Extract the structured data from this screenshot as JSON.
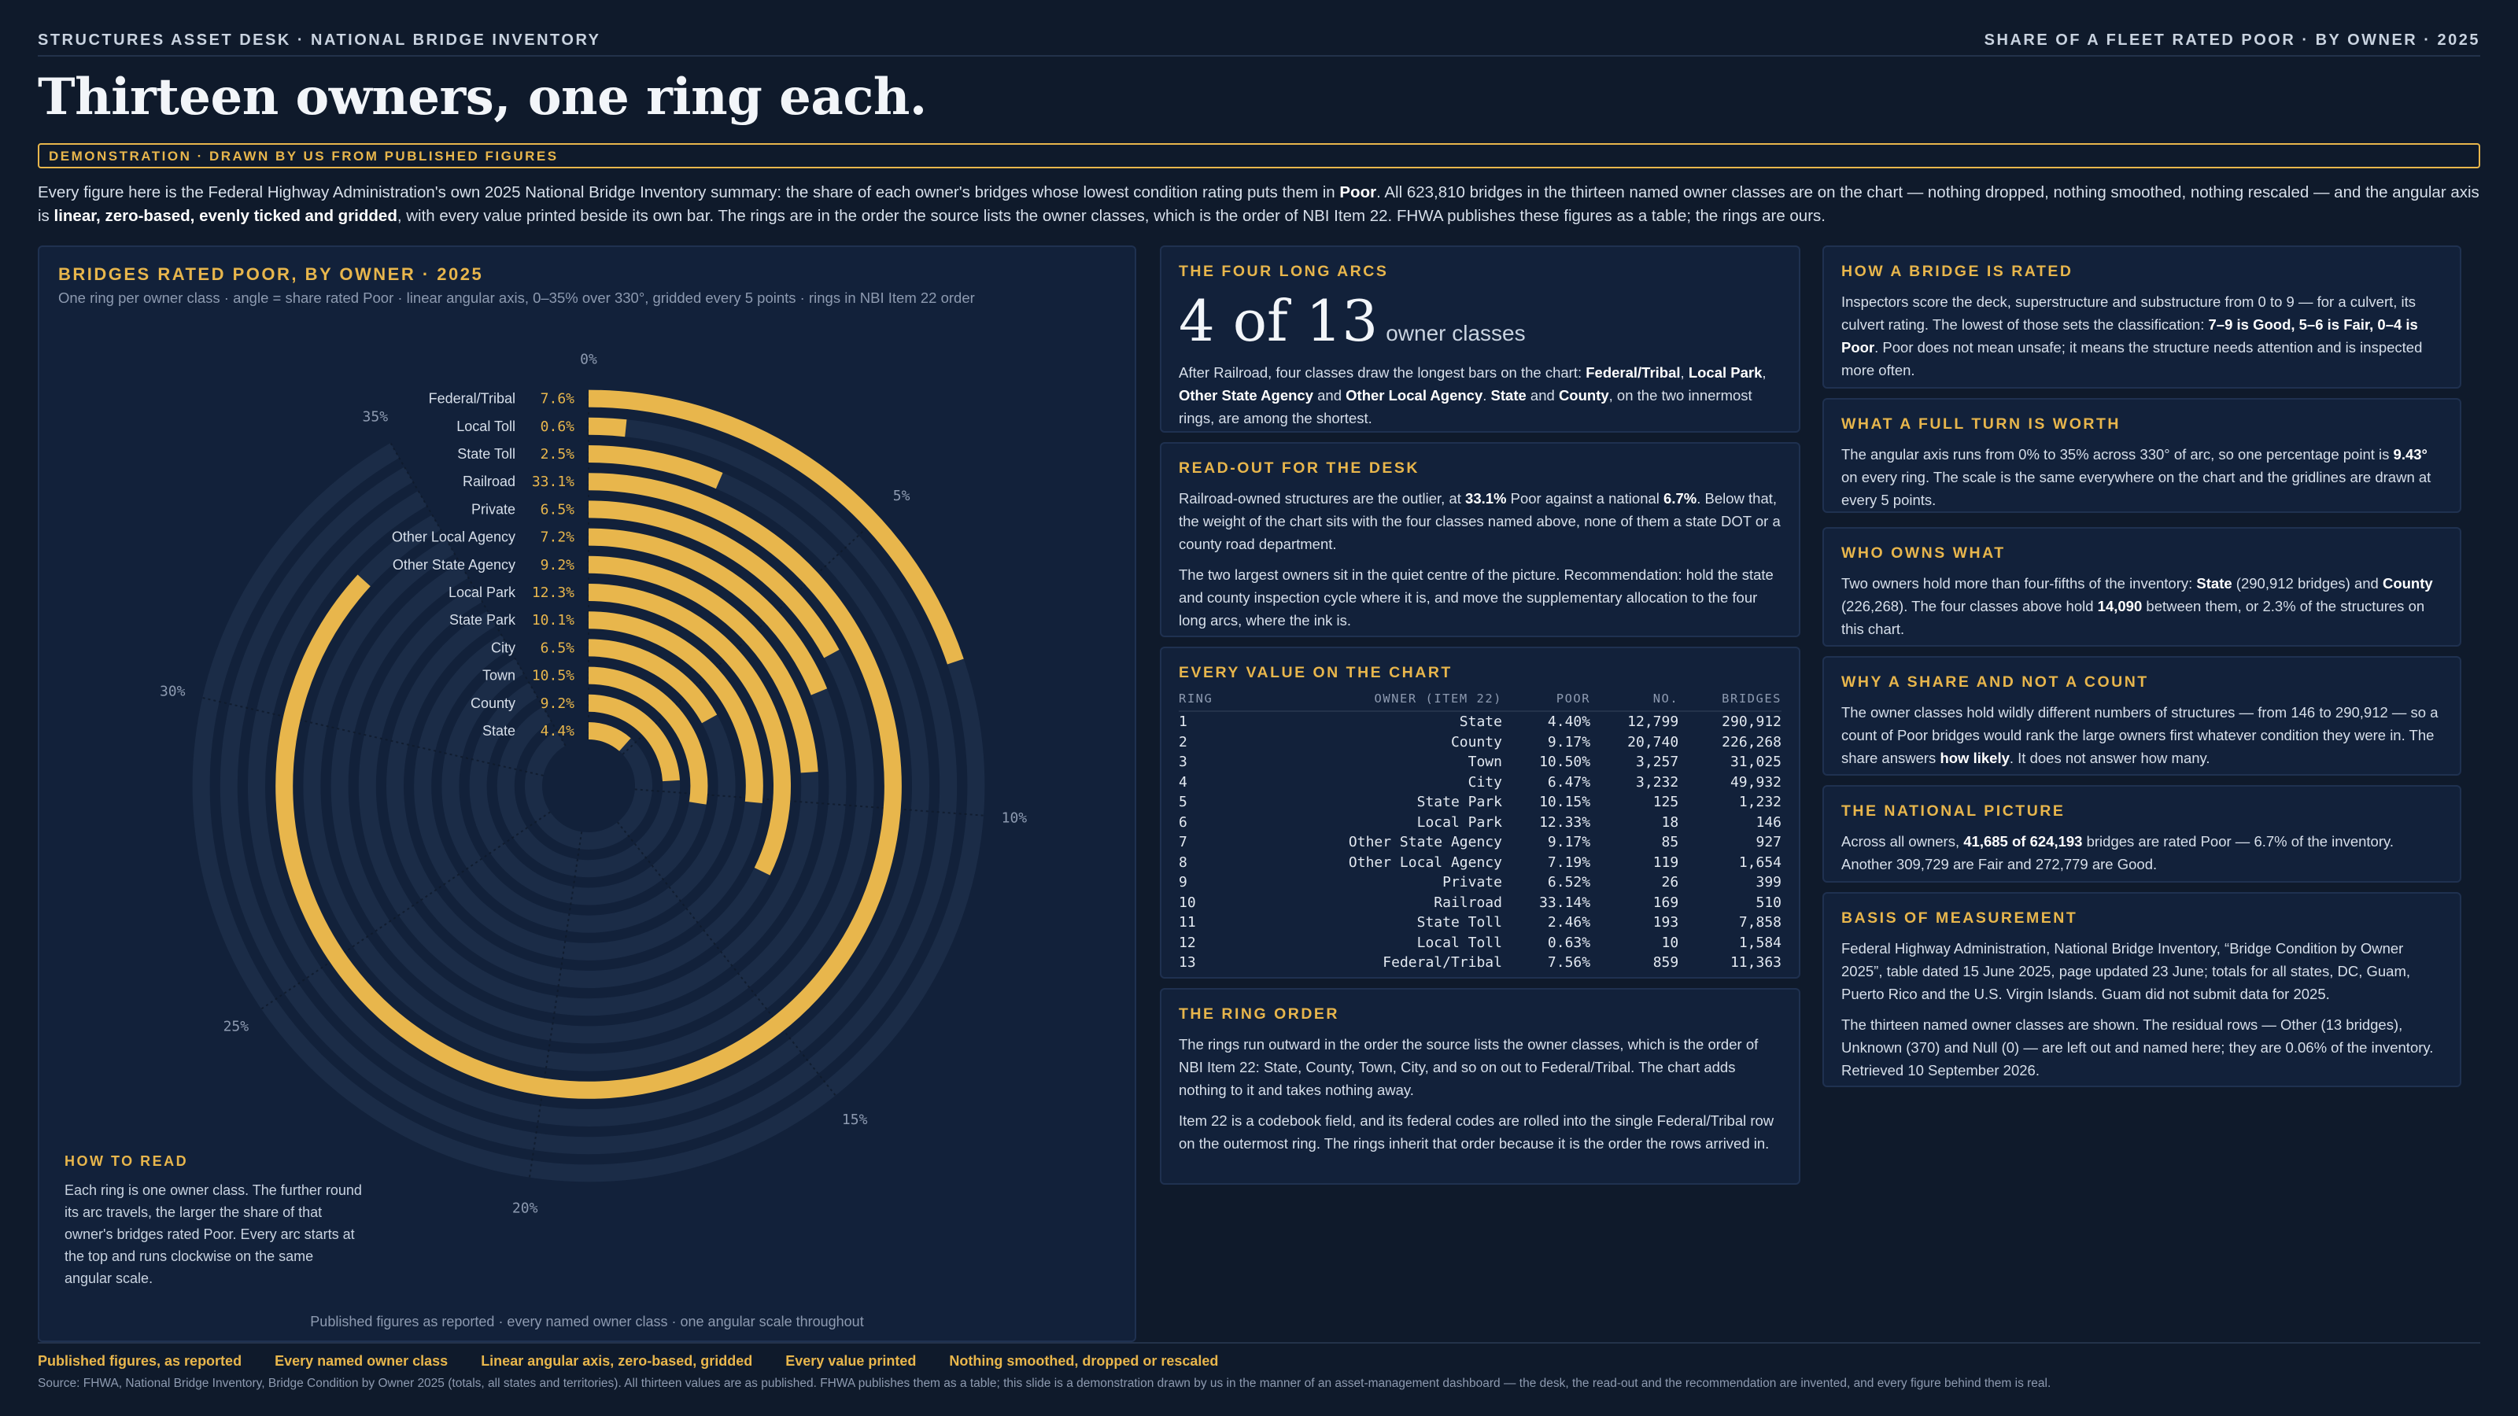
{
  "topbar": {
    "left": "STRUCTURES ASSET DESK · NATIONAL BRIDGE INVENTORY",
    "right": "SHARE OF A FLEET RATED POOR · BY OWNER · 2025"
  },
  "headline": "Thirteen owners, one ring each.",
  "banner": "DEMONSTRATION · DRAWN BY US FROM PUBLISHED FIGURES",
  "intro": {
    "t1": "Every figure here is the Federal Highway Administration's own 2025 National Bridge Inventory summary: the share of each owner's bridges whose lowest condition rating puts them in ",
    "b1": "Poor",
    "t2": ". All 623,810 bridges in the thirteen named owner classes are on the chart — nothing dropped, nothing smoothed, nothing rescaled — and the angular axis is ",
    "b2": "linear, zero-based, evenly ticked and gridded",
    "t3": ", with every value printed beside its own bar. The rings are in the order the source lists the owner classes, which is the order of NBI Item 22. FHWA publishes these figures as a table; the rings are ours."
  },
  "chart_panel": {
    "title": "BRIDGES RATED POOR, BY OWNER · 2025",
    "subtitle": "One ring per owner class · angle = share rated Poor · linear angular axis, 0–35% over 330°, gridded every 5 points · rings in NBI Item 22 order",
    "footer": "Published figures as reported · every named owner class · one angular scale throughout"
  },
  "howto": {
    "title": "HOW TO READ",
    "text": "Each ring is one owner class. The further round its arc travels, the larger the share of that owner's bridges rated Poor. Every arc starts at the top and runs clockwise on the same angular scale."
  },
  "chart_data": {
    "type": "radial-bar",
    "title": "BRIDGES RATED POOR, BY OWNER · 2025",
    "angular_axis": {
      "min": 0,
      "max": 35,
      "unit": "%",
      "ticks": [
        "0%",
        "5%",
        "10%",
        "15%",
        "20%",
        "25%",
        "30%",
        "35%"
      ],
      "tick_values": [
        0,
        5,
        10,
        15,
        20,
        25,
        30,
        35
      ],
      "grid": true,
      "span_degrees": 330
    },
    "categories": [
      "State",
      "County",
      "Town",
      "City",
      "State Park",
      "Local Park",
      "Other State Agency",
      "Other Local Agency",
      "Private",
      "Railroad",
      "State Toll",
      "Local Toll",
      "Federal/Tribal"
    ],
    "values": [
      4.4,
      9.17,
      10.5,
      6.47,
      10.15,
      12.33,
      9.17,
      7.19,
      6.52,
      33.14,
      2.46,
      0.63,
      7.56
    ],
    "value_labels": [
      "4.4%",
      "9.2%",
      "10.5%",
      "6.5%",
      "10.1%",
      "12.3%",
      "9.2%",
      "7.2%",
      "6.5%",
      "33.1%",
      "2.5%",
      "0.6%",
      "7.6%"
    ],
    "colors": {
      "bar": "#e8b64c",
      "track": "#1b2c47",
      "label": "#e8b64c"
    }
  },
  "cards": {
    "long_arcs": {
      "title": "THE FOUR LONG ARCS",
      "big": "4 of 13",
      "unit": "owner classes",
      "t1": "After Railroad, four classes draw the longest bars on the chart: ",
      "b1": "Federal/Tribal",
      "t2": ", ",
      "b2": "Local Park",
      "t3": ", ",
      "b3": "Other State Agency",
      "t4": " and ",
      "b4": "Other Local Agency",
      "t5": ". ",
      "b5": "State",
      "t6": " and ",
      "b6": "County",
      "t7": ", on the two innermost rings, are among the shortest."
    },
    "readout": {
      "title": "READ-OUT FOR THE DESK",
      "p1a": "Railroad-owned structures are the outlier, at ",
      "p1b": "33.1%",
      "p1c": " Poor against a national ",
      "p1d": "6.7%",
      "p1e": ". Below that, the weight of the chart sits with the four classes named above, none of them a state DOT or a county road department.",
      "p2": "The two largest owners sit in the quiet centre of the picture. Recommendation: hold the state and county inspection cycle where it is, and move the supplementary allocation to the four long arcs, where the ink is."
    },
    "table": {
      "title": "EVERY VALUE ON THE CHART",
      "headers": [
        "RING",
        "OWNER (ITEM 22)",
        "POOR",
        "NO.",
        "BRIDGES"
      ],
      "rows": [
        [
          "1",
          "State",
          "4.40%",
          "12,799",
          "290,912"
        ],
        [
          "2",
          "County",
          "9.17%",
          "20,740",
          "226,268"
        ],
        [
          "3",
          "Town",
          "10.50%",
          "3,257",
          "31,025"
        ],
        [
          "4",
          "City",
          "6.47%",
          "3,232",
          "49,932"
        ],
        [
          "5",
          "State Park",
          "10.15%",
          "125",
          "1,232"
        ],
        [
          "6",
          "Local Park",
          "12.33%",
          "18",
          "146"
        ],
        [
          "7",
          "Other State Agency",
          "9.17%",
          "85",
          "927"
        ],
        [
          "8",
          "Other Local Agency",
          "7.19%",
          "119",
          "1,654"
        ],
        [
          "9",
          "Private",
          "6.52%",
          "26",
          "399"
        ],
        [
          "10",
          "Railroad",
          "33.14%",
          "169",
          "510"
        ],
        [
          "11",
          "State Toll",
          "2.46%",
          "193",
          "7,858"
        ],
        [
          "12",
          "Local Toll",
          "0.63%",
          "10",
          "1,584"
        ],
        [
          "13",
          "Federal/Tribal",
          "7.56%",
          "859",
          "11,363"
        ]
      ]
    },
    "ring_order": {
      "title": "THE RING ORDER",
      "p1": "The rings run outward in the order the source lists the owner classes, which is the order of NBI Item 22: State, County, Town, City, and so on out to Federal/Tribal. The chart adds nothing to it and takes nothing away.",
      "p2": "Item 22 is a codebook field, and its federal codes are rolled into the single Federal/Tribal row on the outermost ring. The rings inherit that order because it is the order the rows arrived in."
    },
    "rated": {
      "title": "HOW A BRIDGE IS RATED",
      "t1": "Inspectors score the deck, superstructure and substructure from 0 to 9 — for a culvert, its culvert rating. The lowest of those sets the classification: ",
      "b1": "7–9 is Good, 5–6 is Fair, 0–4 is Poor",
      "t2": ". Poor does not mean unsafe; it means the structure needs attention and is inspected more often."
    },
    "full_turn": {
      "title": "WHAT A FULL TURN IS WORTH",
      "t1": "The angular axis runs from 0% to 35% across 330° of arc, so one percentage point is ",
      "b1": "9.43°",
      "t2": " on every ring. The scale is the same everywhere on the chart and the gridlines are drawn at every 5 points."
    },
    "owns": {
      "title": "WHO OWNS WHAT",
      "t1": "Two owners hold more than four-fifths of the inventory: ",
      "b1": "State",
      "t2": " (290,912 bridges) and ",
      "b2": "County",
      "t3": " (226,268). The four classes above hold ",
      "b3": "14,090",
      "t4": " between them, or 2.3% of the structures on this chart."
    },
    "share": {
      "title": "WHY A SHARE AND NOT A COUNT",
      "t1": "The owner classes hold wildly different numbers of structures — from 146 to 290,912 — so a count of Poor bridges would rank the large owners first whatever condition they were in. The share answers ",
      "b1": "how likely",
      "t2": ". It does not answer how many."
    },
    "national": {
      "title": "THE NATIONAL PICTURE",
      "t1": "Across all owners, ",
      "b1": "41,685 of 624,193",
      "t2": " bridges are rated Poor — 6.7% of the inventory. Another 309,729 are Fair and 272,779 are Good."
    },
    "basis": {
      "title": "BASIS OF MEASUREMENT",
      "p1": "Federal Highway Administration, National Bridge Inventory, “Bridge Condition by Owner 2025”, table dated 15 June 2025, page updated 23 June; totals for all states, DC, Guam, Puerto Rico and the U.S. Virgin Islands. Guam did not submit data for 2025.",
      "p2": "The thirteen named owner classes are shown. The residual rows — Other (13 bridges), Unknown (370) and Null (0) — are left out and named here; they are 0.06% of the inventory. Retrieved 10 September 2026."
    }
  },
  "tags": [
    "Published figures, as reported",
    "Every named owner class",
    "Linear angular axis, zero-based, gridded",
    "Every value printed",
    "Nothing smoothed, dropped or rescaled"
  ],
  "source": "Source: FHWA, National Bridge Inventory, Bridge Condition by Owner 2025 (totals, all states and territories). All thirteen values are as published. FHWA publishes them as a table; this slide is a demonstration drawn by us in the manner of an asset-management dashboard — the desk, the read-out and the recommendation are invented, and every figure behind them is real."
}
